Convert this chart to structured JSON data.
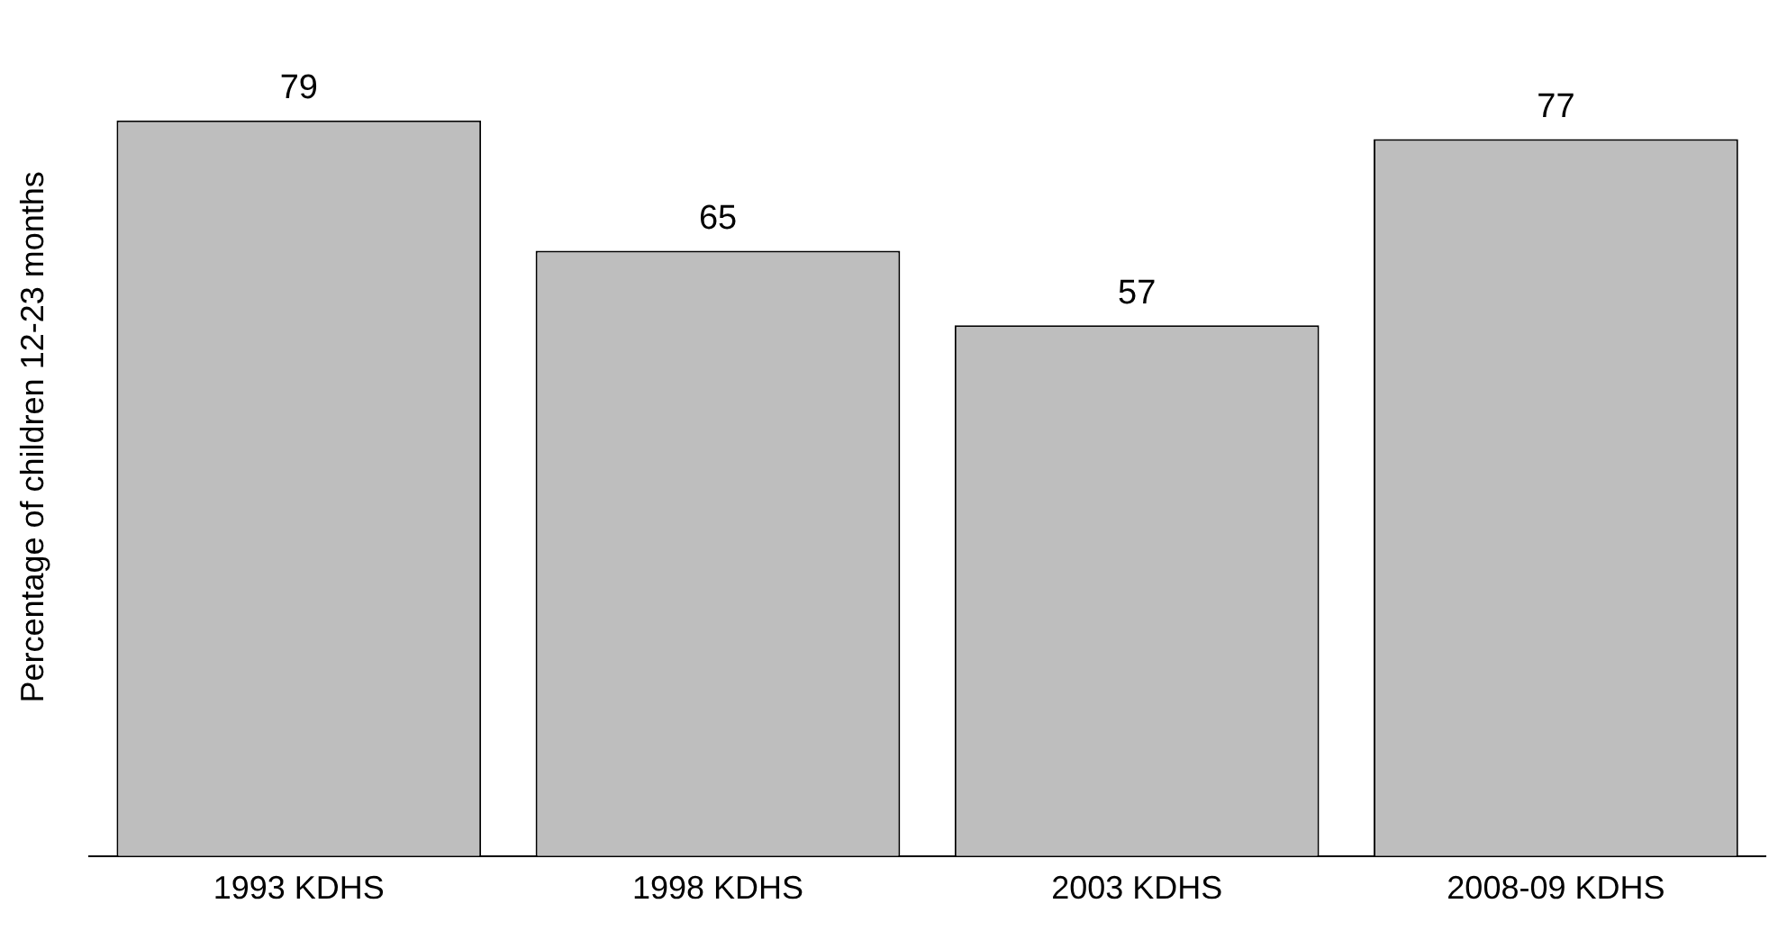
{
  "chart_data": {
    "type": "bar",
    "ylabel": "Percentage of children 12-23 months",
    "categories": [
      "1993 KDHS",
      "1998 KDHS",
      "2003 KDHS",
      "2008-09 KDHS"
    ],
    "values": [
      79,
      65,
      57,
      77
    ],
    "color": "#bebebe",
    "tick_labels": "x",
    "data_labels": true,
    "grid": false,
    "legend": false
  }
}
